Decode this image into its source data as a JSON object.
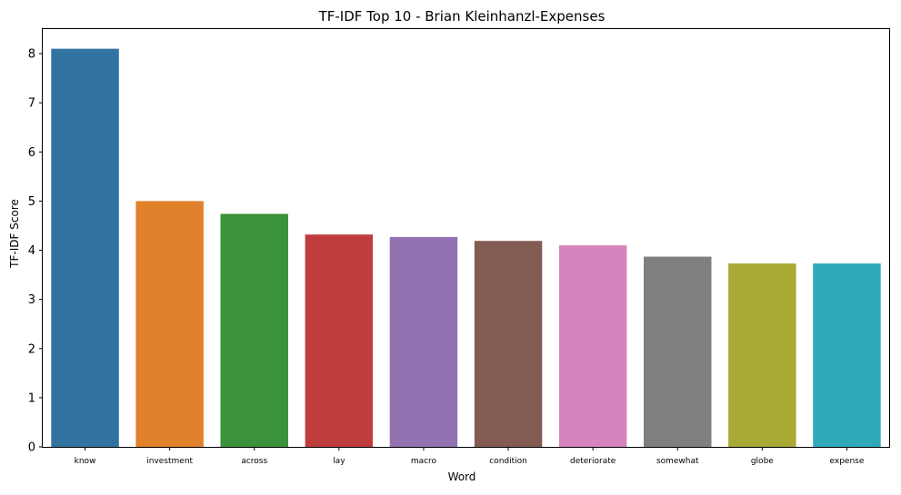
{
  "chart_data": {
    "type": "bar",
    "title": "TF-IDF Top 10 - Brian Kleinhanzl-Expenses",
    "xlabel": "Word",
    "ylabel": "TF-IDF Score",
    "categories": [
      "know",
      "investment",
      "across",
      "lay",
      "macro",
      "condition",
      "deteriorate",
      "somewhat",
      "globe",
      "expense"
    ],
    "values": [
      8.1,
      5.0,
      4.74,
      4.32,
      4.27,
      4.19,
      4.1,
      3.87,
      3.73,
      3.73
    ],
    "colors": [
      "#3274a1",
      "#e1812c",
      "#3a923a",
      "#c03d3e",
      "#9372b2",
      "#845b53",
      "#d684bd",
      "#7f7f7f",
      "#a9aa35",
      "#2eaabb"
    ],
    "ylim": [
      0,
      8.5
    ],
    "yticks": [
      0,
      1,
      2,
      3,
      4,
      5,
      6,
      7,
      8
    ],
    "grid": false,
    "legend": "none"
  }
}
